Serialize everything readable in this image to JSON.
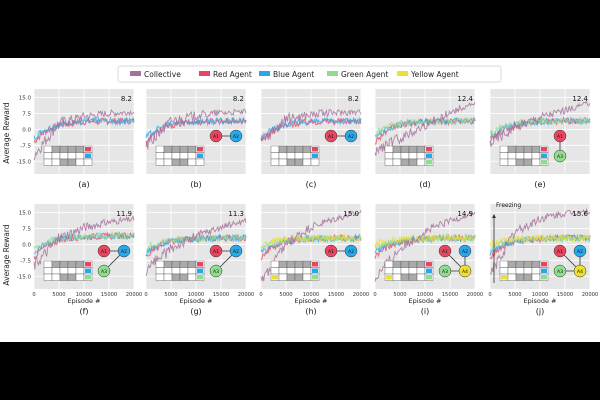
{
  "legend": {
    "entries": [
      {
        "label": "Collective",
        "color": "#a5719b"
      },
      {
        "label": "Red Agent",
        "color": "#e84561"
      },
      {
        "label": "Blue Agent",
        "color": "#29a8e8"
      },
      {
        "label": "Green Agent",
        "color": "#90dd90"
      },
      {
        "label": "Yellow Agent",
        "color": "#ece030"
      }
    ]
  },
  "axes": {
    "ylabel": "Average Reward",
    "xlabel": "Episode #",
    "yticks": [
      "15.0",
      "7.5",
      "0.0",
      "-7.5",
      "-15.0"
    ],
    "xticks": [
      "0",
      "5000",
      "10000",
      "15000",
      "20000"
    ],
    "xlim": [
      0,
      20000
    ],
    "ylim": [
      -21,
      19
    ]
  },
  "chart_data": [
    {
      "type": "line",
      "label": "(a)",
      "peak_label": "8.2",
      "agents": 2,
      "collective": [
        -12,
        3,
        6,
        7.5,
        8.2
      ],
      "agent_level": 4,
      "graph": "none"
    },
    {
      "type": "line",
      "label": "(b)",
      "peak_label": "8.2",
      "agents": 2,
      "collective": [
        -8,
        4,
        6.5,
        7.8,
        8.2
      ],
      "agent_level": 4,
      "graph": "A1 -> A2"
    },
    {
      "type": "line",
      "label": "(c)",
      "peak_label": "8.2",
      "agents": 2,
      "collective": [
        -6,
        5,
        7,
        8,
        8.2
      ],
      "agent_level": 4,
      "graph": "A1 <- A2"
    },
    {
      "type": "line",
      "label": "(d)",
      "peak_label": "12.4",
      "agents": 3,
      "collective": [
        -10,
        -4,
        2,
        8,
        12.4
      ],
      "agent_level": 4,
      "graph": "none"
    },
    {
      "type": "line",
      "label": "(e)",
      "peak_label": "12.4",
      "agents": 3,
      "collective": [
        -6,
        1,
        6,
        9,
        12.4
      ],
      "agent_level": 4,
      "graph": "A1 -> A3"
    },
    {
      "type": "line",
      "label": "(f)",
      "peak_label": "11.9",
      "agents": 3,
      "collective": [
        -10,
        3,
        8,
        10.5,
        11.9
      ],
      "agent_level": 4,
      "graph": "A3 -> A2, A1 -> A2"
    },
    {
      "type": "line",
      "label": "(g)",
      "peak_label": "11.3",
      "agents": 3,
      "collective": [
        -12,
        -2,
        4,
        8,
        11.3
      ],
      "agent_level": 3,
      "graph": "A3 -> A2, A1 -> A2"
    },
    {
      "type": "line",
      "label": "(h)",
      "peak_label": "15.0",
      "agents": 4,
      "collective": [
        -18,
        0,
        8,
        12,
        15
      ],
      "agent_level": 3,
      "graph": "A1 -> A2"
    },
    {
      "type": "line",
      "label": "(i)",
      "peak_label": "14.9",
      "agents": 4,
      "collective": [
        -16,
        -2,
        6,
        11,
        14.9
      ],
      "agent_level": 3,
      "graph": "A1 -> A4, A2 -> A4, A3 -> A4"
    },
    {
      "type": "line",
      "label": "(j)",
      "peak_label": "15.6",
      "agents": 4,
      "collective": [
        -14,
        6,
        12,
        14.5,
        15.6
      ],
      "agent_level": 3,
      "graph": "A1 -> A4, A2 -> A4, A3 -> A4",
      "annotation": "Freezing"
    }
  ]
}
